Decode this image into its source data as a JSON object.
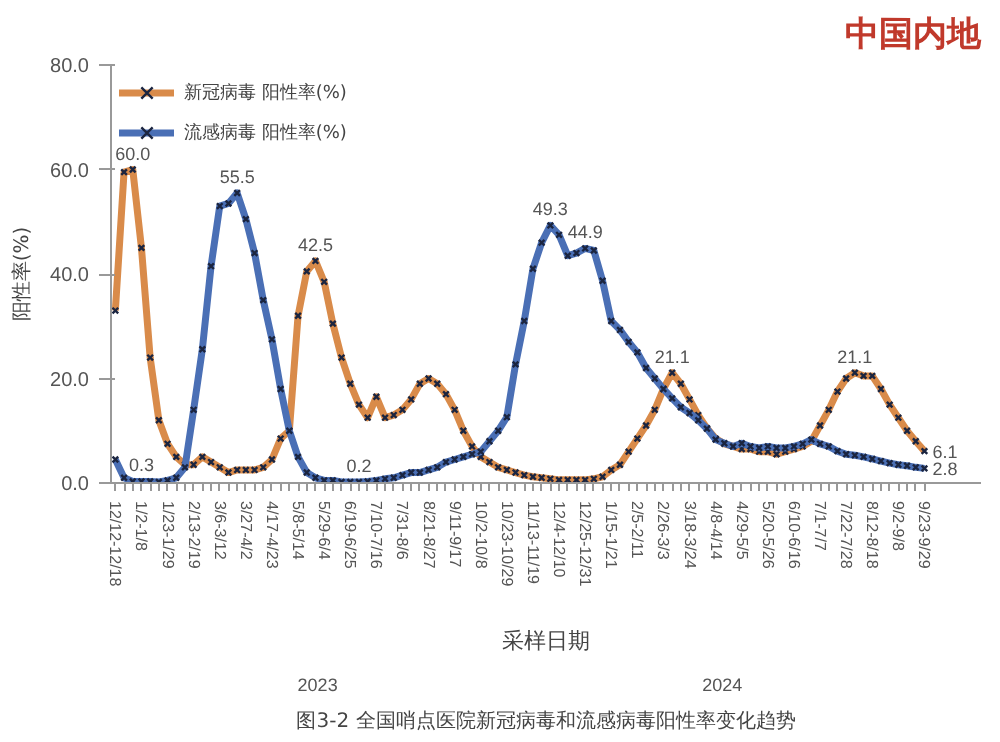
{
  "chart_data": {
    "type": "line",
    "title": "中国内地",
    "ylabel": "阳性率(%)",
    "xlabel": "采样日期",
    "categories": [
      "12/12-12/18",
      null,
      null,
      "1/2-1/8",
      null,
      null,
      "1/23-1/29",
      null,
      null,
      "2/13-2/19",
      null,
      null,
      "3/6-3/12",
      null,
      null,
      "3/27-4/2",
      null,
      null,
      "4/17-4/23",
      null,
      null,
      "5/8-5/14",
      null,
      null,
      "5/29-6/4",
      null,
      null,
      "6/19-6/25",
      null,
      null,
      "7/10-7/16",
      null,
      null,
      "7/31-8/6",
      null,
      null,
      "8/21-8/27",
      null,
      null,
      "9/11-9/17",
      null,
      null,
      "10/2-10/8",
      null,
      null,
      "10/23-10/29",
      null,
      null,
      "11/13-11/19",
      null,
      null,
      "12/4-12/10",
      null,
      null,
      "12/25-12/31",
      null,
      null,
      "1/15-1/21",
      null,
      null,
      "2/5-2/11",
      null,
      null,
      "2/26-3/3",
      null,
      null,
      "3/18-3/24",
      null,
      null,
      "4/8-4/14",
      null,
      null,
      "4/29-5/5",
      null,
      null,
      "5/20-5/26",
      null,
      null,
      "6/10-6/16",
      null,
      null,
      "7/1-7/7",
      null,
      null,
      "7/22-7/28",
      null,
      null,
      "8/12-8/18",
      null,
      null,
      "9/2-9/8",
      null,
      null,
      "9/23-9/29"
    ],
    "series": [
      {
        "name": "新冠病毒 阳性率(%)",
        "color": "#d98b4a",
        "values": [
          33,
          59.5,
          60.0,
          45,
          24,
          12,
          7.5,
          5,
          3.5,
          3.5,
          5,
          4,
          3,
          2,
          2.5,
          2.5,
          2.5,
          3,
          4.5,
          8.5,
          10,
          32,
          40.5,
          42.5,
          38.5,
          30.5,
          24,
          19,
          15,
          12.5,
          16.5,
          12.5,
          13,
          14,
          16,
          19,
          20,
          19,
          17,
          14,
          10,
          7,
          5,
          4,
          3,
          2.5,
          2,
          1.5,
          1.2,
          1,
          0.8,
          0.6,
          0.6,
          0.6,
          0.6,
          0.8,
          1.2,
          2.5,
          3.5,
          6,
          8.5,
          11,
          14,
          18,
          21.1,
          19,
          16,
          13,
          10.5,
          8.5,
          7.5,
          7,
          6.5,
          6.5,
          6,
          6,
          5.5,
          6,
          6.5,
          7,
          8,
          11,
          14,
          17.5,
          20,
          21.1,
          20.5,
          20.5,
          18,
          15,
          12.5,
          10,
          8,
          6.1
        ],
        "value_labels": [
          null,
          null,
          "60.0",
          null,
          null,
          null,
          null,
          null,
          null,
          null,
          null,
          null,
          null,
          null,
          null,
          null,
          null,
          null,
          null,
          null,
          null,
          null,
          null,
          "42.5",
          null,
          null,
          null,
          null,
          null,
          null,
          null,
          null,
          null,
          null,
          null,
          null,
          null,
          null,
          null,
          null,
          null,
          null,
          null,
          null,
          null,
          null,
          null,
          null,
          null,
          null,
          null,
          null,
          null,
          null,
          null,
          null,
          null,
          null,
          null,
          null,
          null,
          null,
          null,
          null,
          "21.1",
          null,
          null,
          null,
          null,
          null,
          null,
          null,
          null,
          null,
          null,
          null,
          null,
          null,
          null,
          null,
          null,
          null,
          null,
          null,
          null,
          "21.1",
          null,
          null,
          null,
          null,
          null,
          null,
          null,
          "6.1"
        ]
      },
      {
        "name": "流感病毒 阳性率(%)",
        "color": "#4a6fb5",
        "values": [
          4.5,
          1,
          0.3,
          0.3,
          0.3,
          0.2,
          0.5,
          1,
          3,
          14,
          25.6,
          41.5,
          53,
          53.5,
          55.5,
          50.5,
          44,
          35,
          27.5,
          18,
          10,
          5,
          2,
          1,
          0.5,
          0.5,
          0.2,
          0.2,
          0.2,
          0.3,
          0.5,
          0.8,
          1,
          1.5,
          2,
          2,
          2.5,
          3,
          4,
          4.5,
          5,
          5.5,
          6,
          8,
          10,
          12.6,
          22.7,
          31,
          41,
          46,
          49.3,
          47.5,
          43.5,
          44,
          44.9,
          44.5,
          38.7,
          31,
          29.3,
          27,
          25,
          22,
          20,
          18,
          16.2,
          14.5,
          13.4,
          12,
          10.4,
          8.3,
          7.6,
          7,
          7.6,
          7,
          6.7,
          7,
          6.7,
          6.7,
          7,
          7.5,
          8.3,
          7.5,
          7,
          6.1,
          5.5,
          5.3,
          5,
          4.6,
          4.2,
          3.8,
          3.5,
          3.3,
          3,
          2.8
        ],
        "value_labels": [
          null,
          null,
          null,
          "0.3",
          null,
          null,
          null,
          null,
          null,
          null,
          null,
          null,
          null,
          null,
          "55.5",
          null,
          null,
          null,
          null,
          null,
          null,
          null,
          null,
          null,
          null,
          null,
          null,
          null,
          "0.2",
          null,
          null,
          null,
          null,
          null,
          null,
          null,
          null,
          null,
          null,
          null,
          null,
          null,
          null,
          null,
          null,
          null,
          null,
          null,
          null,
          null,
          "49.3",
          null,
          null,
          null,
          "44.9",
          null,
          null,
          null,
          null,
          null,
          null,
          null,
          null,
          null,
          null,
          null,
          null,
          null,
          null,
          null,
          null,
          null,
          null,
          null,
          null,
          null,
          null,
          null,
          null,
          null,
          null,
          null,
          null,
          null,
          null,
          null,
          null,
          null,
          null,
          null,
          null,
          null,
          null,
          "2.8"
        ]
      }
    ],
    "ylim": [
      0,
      80
    ],
    "yticks": [
      {
        "value": 0,
        "label": "0.0"
      },
      {
        "value": 20,
        "label": "20.0"
      },
      {
        "value": 40,
        "label": "40.0"
      },
      {
        "value": 60,
        "label": "60.0"
      },
      {
        "value": 80,
        "label": "80.0"
      }
    ],
    "marker": "cross",
    "line_style": "solid",
    "grid": false,
    "legend": "top left",
    "annotations": [
      "2023",
      "2024",
      "图3-2 全国哨点医院新冠病毒和流感病毒阳性率变化趋势"
    ]
  }
}
